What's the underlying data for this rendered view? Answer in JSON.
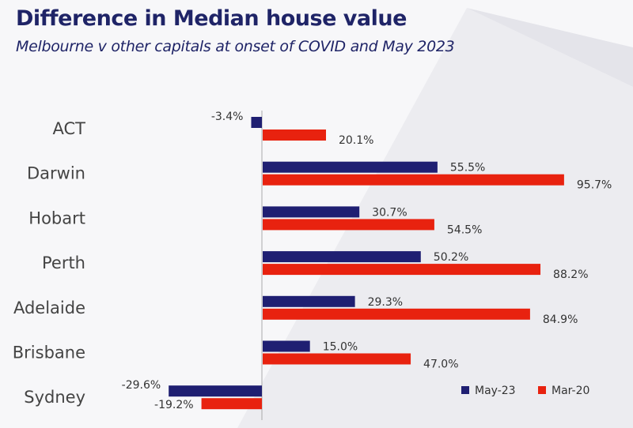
{
  "header": {
    "title": "Difference in Median house value",
    "subtitle": "Melbourne v other capitals at onset of COVID and May 2023"
  },
  "colors": {
    "may23": "#1f1f72",
    "mar20": "#e8220f",
    "axis": "#aaaaaa"
  },
  "chart_data": {
    "type": "bar",
    "orientation": "horizontal",
    "title": "Difference in Median house value",
    "subtitle": "Melbourne v other capitals at onset of COVID and May 2023",
    "categories": [
      "ACT",
      "Darwin",
      "Hobart",
      "Perth",
      "Adelaide",
      "Brisbane",
      "Sydney"
    ],
    "series": [
      {
        "name": "May-23",
        "values": [
          -3.4,
          55.5,
          30.7,
          50.2,
          29.3,
          15.0,
          -29.6
        ],
        "labels": [
          "-3.4%",
          "55.5%",
          "30.7%",
          "50.2%",
          "29.3%",
          "15.0%",
          "-29.6%"
        ]
      },
      {
        "name": "Mar-20",
        "values": [
          20.1,
          95.7,
          54.5,
          88.2,
          84.9,
          47.0,
          -19.2
        ],
        "labels": [
          "20.1%",
          "95.7%",
          "54.5%",
          "88.2%",
          "84.9%",
          "47.0%",
          "-19.2%"
        ]
      }
    ],
    "legend": "bottom-right",
    "grid": false
  }
}
